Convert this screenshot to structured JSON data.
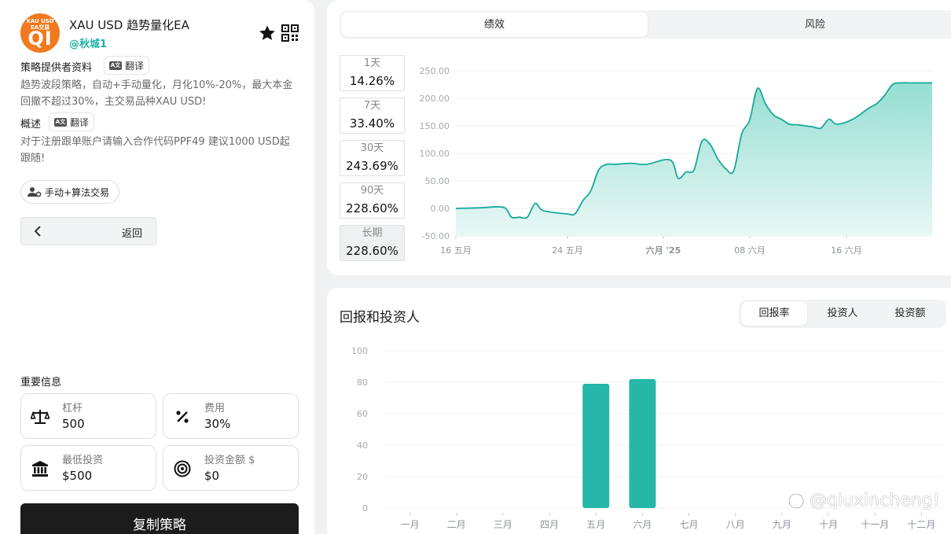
{
  "header": {
    "avatar_top": "XAU USD",
    "avatar_sub": "EA交易",
    "avatar_big": "QI",
    "title": "XAU USD 趋势量化EA",
    "handle": "@秋城1"
  },
  "provider": {
    "label": "策略提供者资料",
    "translate": "翻译",
    "description": "趋势波段策略，自动+手动量化，月化10%-20%，最大本金回撤不超过30%，主交易品种XAU USD!"
  },
  "overview": {
    "label": "概述",
    "translate": "翻译",
    "description": "对于注册跟单账户请输入合作代码PPF49 建议1000 USD起跟随!"
  },
  "tag_label": "手动+算法交易",
  "back_label": "返回",
  "important_label": "重要信息",
  "cards": {
    "leverage": {
      "label": "杠杆",
      "value": "500"
    },
    "fee": {
      "label": "费用",
      "value": "30%"
    },
    "min_invest": {
      "label": "最低投资",
      "value": "$500"
    },
    "invest_amount": {
      "label": "投资金额 $",
      "value": "$0"
    }
  },
  "copy_button": "复制策略",
  "top_tabs": {
    "performance": "绩效",
    "risk": "风险"
  },
  "periods": [
    {
      "label": "1天",
      "value": "14.26%"
    },
    {
      "label": "7天",
      "value": "33.40%"
    },
    {
      "label": "30天",
      "value": "243.69%"
    },
    {
      "label": "90天",
      "value": "228.60%"
    },
    {
      "label": "长期",
      "value": "228.60%"
    }
  ],
  "returns_title": "回报和投资人",
  "bottom_tabs": {
    "return_rate": "回报率",
    "investors": "投资人",
    "investment": "投资额"
  },
  "watermark": "@qiuxincheng!",
  "colors": {
    "accent": "#20b3a6",
    "bar": "#26b7a8",
    "dark": "#1c1c1c",
    "avatar": "#f07a1d"
  },
  "chart_data": [
    {
      "type": "area",
      "x_ticks": [
        "16 五月",
        "24 五月",
        "六月 '25",
        "08 六月",
        "16 六月"
      ],
      "y_ticks": [
        "250.00",
        "200.00",
        "150.00",
        "100.00",
        "50.00",
        "0.00",
        "-50.00"
      ],
      "ylim": [
        -50,
        250
      ],
      "x": [
        0,
        3,
        6,
        7,
        8,
        9,
        10,
        11,
        14,
        15,
        16,
        17,
        18,
        19,
        20,
        22,
        24,
        27,
        28,
        29,
        30,
        31,
        32,
        33,
        34,
        35,
        36,
        37,
        38,
        39,
        40,
        41,
        42,
        43,
        44,
        45,
        46,
        47,
        48,
        50,
        52,
        53,
        54,
        55,
        56,
        57,
        58,
        59,
        60
      ],
      "values": [
        0,
        1,
        2,
        -16,
        -16,
        -16,
        9,
        -4,
        -10,
        -10,
        14,
        32,
        70,
        80,
        80,
        82,
        80,
        88,
        55,
        66,
        70,
        122,
        117,
        90,
        72,
        68,
        135,
        160,
        218,
        190,
        170,
        162,
        153,
        152,
        150,
        148,
        146,
        162,
        153,
        162,
        182,
        190,
        205,
        225,
        228,
        228,
        228,
        228,
        228
      ],
      "grid": true
    },
    {
      "type": "bar",
      "categories": [
        "一月",
        "二月",
        "三月",
        "四月",
        "五月",
        "六月",
        "七月",
        "八月",
        "九月",
        "十月",
        "十一月",
        "十二月"
      ],
      "values": [
        0,
        0,
        0,
        0,
        79,
        82,
        0,
        0,
        0,
        0,
        0,
        0
      ],
      "y_ticks": [
        "100",
        "80",
        "60",
        "40",
        "20",
        "0"
      ],
      "ylim": [
        0,
        100
      ],
      "grid": true
    }
  ]
}
